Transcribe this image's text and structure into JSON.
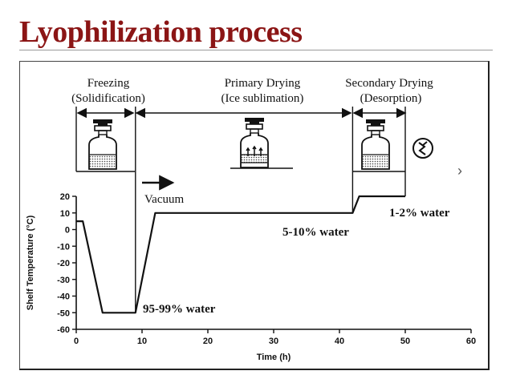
{
  "slide": {
    "title": "Lyophilization process"
  },
  "phases": [
    {
      "name": "Freezing",
      "subtitle": "(Solidification)"
    },
    {
      "name": "Primary Drying",
      "subtitle": "(Ice sublimation)"
    },
    {
      "name": "Secondary Drying",
      "subtitle": "(Desorption)"
    }
  ],
  "annotations": {
    "vacuum": "Vacuum",
    "water_freezing": "95-99% water",
    "water_primary": "5-10% water",
    "water_secondary": "1-2% water"
  },
  "chart_data": {
    "type": "line",
    "xlabel": "Time (h)",
    "ylabel": "Shelf Temperature (°C)",
    "xlim": [
      0,
      60
    ],
    "ylim": [
      -60,
      20
    ],
    "xticks": [
      0,
      10,
      20,
      30,
      40,
      50,
      60
    ],
    "yticks": [
      20,
      10,
      0,
      -10,
      -20,
      -30,
      -40,
      -50,
      -60
    ],
    "grid": false,
    "series": [
      {
        "points": [
          [
            0,
            5
          ],
          [
            1,
            5
          ],
          [
            4,
            -50
          ],
          [
            9,
            -50
          ],
          [
            12,
            10
          ],
          [
            42,
            10
          ],
          [
            43,
            20
          ],
          [
            50,
            20
          ]
        ]
      }
    ],
    "phase_boundaries": [
      0,
      9,
      42,
      50
    ]
  },
  "icons": [
    "vial-frozen-icon",
    "vial-subliming-icon",
    "vial-dried-icon",
    "crystal-icon",
    "chevron-right-icon"
  ]
}
